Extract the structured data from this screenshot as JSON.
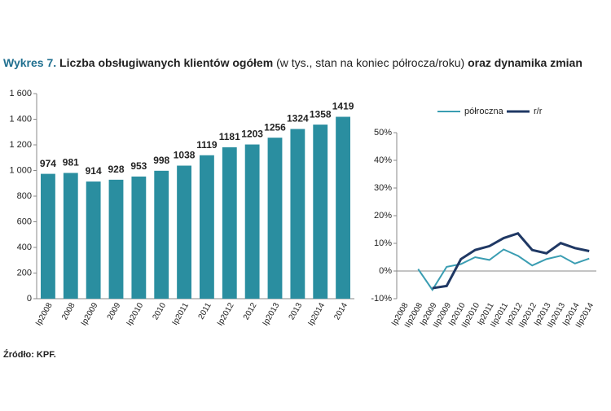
{
  "header": {
    "label": "Wykres 7.",
    "title_main": "Liczba obsługiwanych klientów ogółem",
    "title_note": "(w tys., stan na koniec półrocza/roku)",
    "title_end": "oraz dynamika zmian"
  },
  "chart_data": [
    {
      "type": "bar",
      "categories": [
        "Ip2008",
        "2008",
        "Ip2009",
        "2009",
        "Ip2010",
        "2010",
        "Ip2011",
        "2011",
        "Ip2012",
        "2012",
        "Ip2013",
        "2013",
        "Ip2014",
        "2014"
      ],
      "values": [
        974,
        981,
        914,
        928,
        953,
        998,
        1038,
        1119,
        1181,
        1203,
        1256,
        1324,
        1358,
        1419
      ],
      "color": "#2a8ea0",
      "ylim": [
        0,
        1600
      ],
      "yticks": [
        0,
        200,
        400,
        600,
        800,
        {
          "value": 1000,
          "label": "1 000"
        },
        {
          "value": 1200,
          "label": "1 200"
        },
        {
          "value": 1400,
          "label": "1 400"
        },
        {
          "value": 1600,
          "label": "1 600"
        }
      ]
    },
    {
      "type": "line",
      "categories": [
        "Ip2008",
        "IIp2008",
        "Ip2009",
        "IIp2009",
        "Ip2010",
        "IIp2010",
        "Ip2011",
        "IIp2011",
        "Ip2012",
        "IIp2012",
        "Ip2013",
        "IIp2013",
        "Ip2014",
        "IIp2014"
      ],
      "series": [
        {
          "name": "półroczna",
          "color": "#3a9db2",
          "values": [
            null,
            0.7,
            -6.8,
            1.5,
            2.5,
            5.0,
            4.0,
            7.8,
            5.5,
            2.0,
            4.3,
            5.5,
            2.7,
            4.5
          ]
        },
        {
          "name": "r/r",
          "color": "#1f3864",
          "values": [
            null,
            null,
            -6.2,
            -5.4,
            4.3,
            7.6,
            9.0,
            11.9,
            13.6,
            7.6,
            6.4,
            10.1,
            8.3,
            7.2
          ]
        }
      ],
      "ylim": [
        -10,
        50
      ],
      "yticks": [
        {
          "value": -10,
          "label": "-10%"
        },
        {
          "value": 0,
          "label": "0%"
        },
        {
          "value": 10,
          "label": "10%"
        },
        {
          "value": 20,
          "label": "20%"
        },
        {
          "value": 30,
          "label": "30%"
        },
        {
          "value": 40,
          "label": "40%"
        },
        {
          "value": 50,
          "label": "50%"
        }
      ],
      "legend": "top"
    }
  ],
  "footer": {
    "source": "Źródło: KPF."
  }
}
